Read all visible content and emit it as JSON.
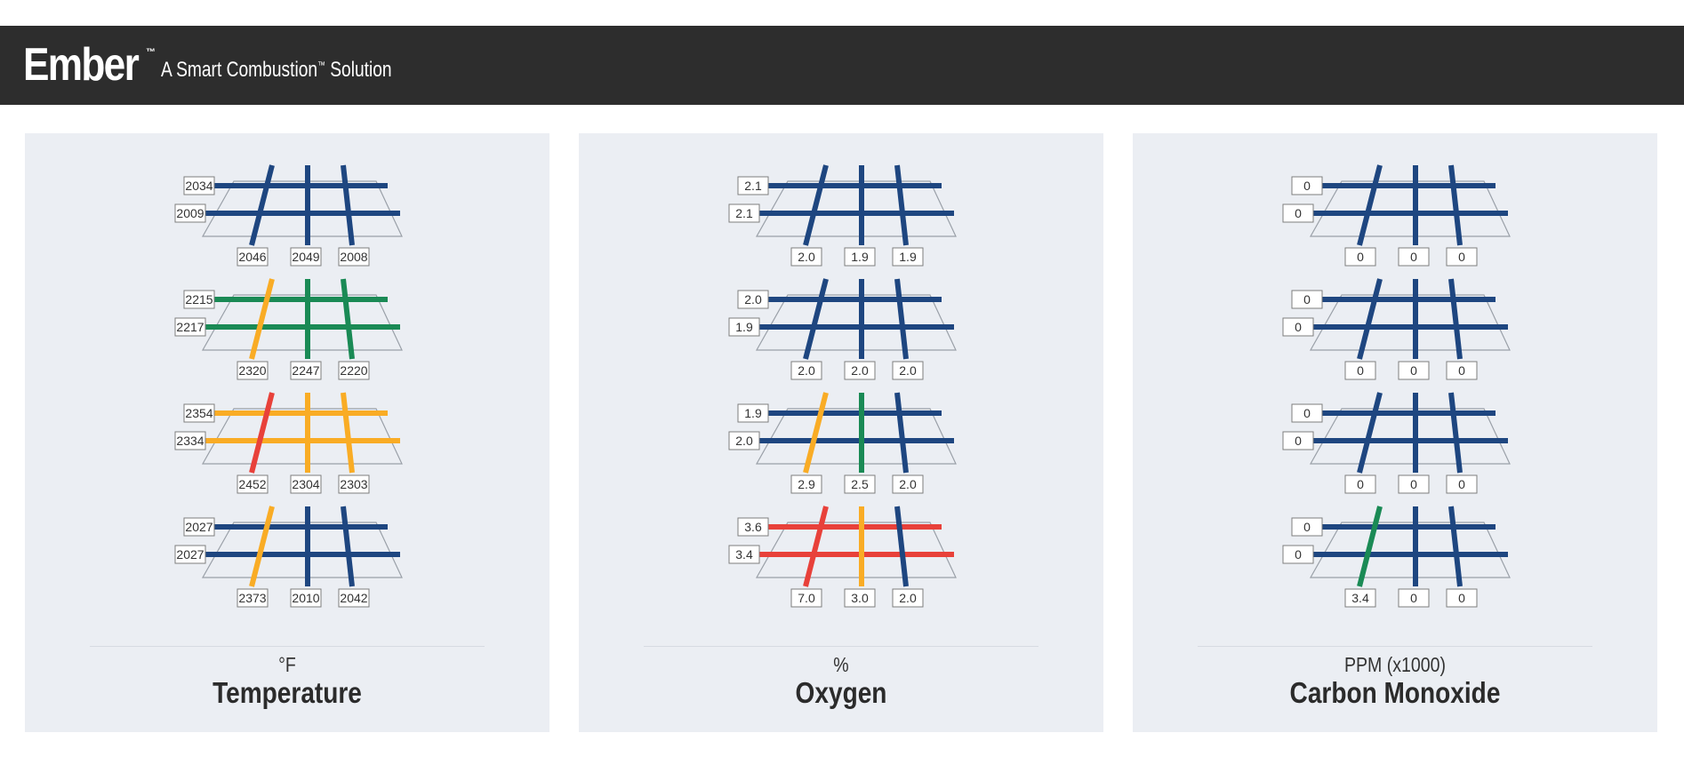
{
  "app": {
    "brand": "Ember",
    "brand_tm": "™",
    "tagline_pre": "A Smart Combustion",
    "tagline_tm": "™",
    "tagline_post": " Solution"
  },
  "colors": {
    "header_bg": "#2d2d2d",
    "panel_bg": "#ebeef3",
    "blue": "#1e4680",
    "green": "#1a8a55",
    "yellow": "#f9ac25",
    "red": "#e8413a"
  },
  "panels": [
    {
      "key": "temperature",
      "unit": "°F",
      "title": "Temperature",
      "levels": [
        {
          "rows": [
            {
              "value": "2034",
              "status": "blue"
            },
            {
              "value": "2009",
              "status": "blue"
            }
          ],
          "cols": [
            {
              "value": "2046",
              "status": "blue"
            },
            {
              "value": "2049",
              "status": "blue"
            },
            {
              "value": "2008",
              "status": "blue"
            }
          ]
        },
        {
          "rows": [
            {
              "value": "2215",
              "status": "green"
            },
            {
              "value": "2217",
              "status": "green"
            }
          ],
          "cols": [
            {
              "value": "2320",
              "status": "yellow"
            },
            {
              "value": "2247",
              "status": "green"
            },
            {
              "value": "2220",
              "status": "green"
            }
          ]
        },
        {
          "rows": [
            {
              "value": "2354",
              "status": "yellow"
            },
            {
              "value": "2334",
              "status": "yellow"
            }
          ],
          "cols": [
            {
              "value": "2452",
              "status": "red"
            },
            {
              "value": "2304",
              "status": "yellow"
            },
            {
              "value": "2303",
              "status": "yellow"
            }
          ]
        },
        {
          "rows": [
            {
              "value": "2027",
              "status": "blue"
            },
            {
              "value": "2027",
              "status": "blue"
            }
          ],
          "cols": [
            {
              "value": "2373",
              "status": "yellow"
            },
            {
              "value": "2010",
              "status": "blue"
            },
            {
              "value": "2042",
              "status": "blue"
            }
          ]
        }
      ]
    },
    {
      "key": "oxygen",
      "unit": "%",
      "title": "Oxygen",
      "levels": [
        {
          "rows": [
            {
              "value": "2.1",
              "status": "blue"
            },
            {
              "value": "2.1",
              "status": "blue"
            }
          ],
          "cols": [
            {
              "value": "2.0",
              "status": "blue"
            },
            {
              "value": "1.9",
              "status": "blue"
            },
            {
              "value": "1.9",
              "status": "blue"
            }
          ]
        },
        {
          "rows": [
            {
              "value": "2.0",
              "status": "blue"
            },
            {
              "value": "1.9",
              "status": "blue"
            }
          ],
          "cols": [
            {
              "value": "2.0",
              "status": "blue"
            },
            {
              "value": "2.0",
              "status": "blue"
            },
            {
              "value": "2.0",
              "status": "blue"
            }
          ]
        },
        {
          "rows": [
            {
              "value": "1.9",
              "status": "blue"
            },
            {
              "value": "2.0",
              "status": "blue"
            }
          ],
          "cols": [
            {
              "value": "2.9",
              "status": "yellow"
            },
            {
              "value": "2.5",
              "status": "green"
            },
            {
              "value": "2.0",
              "status": "blue"
            }
          ]
        },
        {
          "rows": [
            {
              "value": "3.6",
              "status": "red"
            },
            {
              "value": "3.4",
              "status": "red"
            }
          ],
          "cols": [
            {
              "value": "7.0",
              "status": "red"
            },
            {
              "value": "3.0",
              "status": "yellow"
            },
            {
              "value": "2.0",
              "status": "blue"
            }
          ]
        }
      ]
    },
    {
      "key": "carbon-monoxide",
      "unit": "PPM (x1000)",
      "title": "Carbon Monoxide",
      "levels": [
        {
          "rows": [
            {
              "value": "0",
              "status": "blue"
            },
            {
              "value": "0",
              "status": "blue"
            }
          ],
          "cols": [
            {
              "value": "0",
              "status": "blue"
            },
            {
              "value": "0",
              "status": "blue"
            },
            {
              "value": "0",
              "status": "blue"
            }
          ]
        },
        {
          "rows": [
            {
              "value": "0",
              "status": "blue"
            },
            {
              "value": "0",
              "status": "blue"
            }
          ],
          "cols": [
            {
              "value": "0",
              "status": "blue"
            },
            {
              "value": "0",
              "status": "blue"
            },
            {
              "value": "0",
              "status": "blue"
            }
          ]
        },
        {
          "rows": [
            {
              "value": "0",
              "status": "blue"
            },
            {
              "value": "0",
              "status": "blue"
            }
          ],
          "cols": [
            {
              "value": "0",
              "status": "blue"
            },
            {
              "value": "0",
              "status": "blue"
            },
            {
              "value": "0",
              "status": "blue"
            }
          ]
        },
        {
          "rows": [
            {
              "value": "0",
              "status": "blue"
            },
            {
              "value": "0",
              "status": "blue"
            }
          ],
          "cols": [
            {
              "value": "3.4",
              "status": "green"
            },
            {
              "value": "0",
              "status": "blue"
            },
            {
              "value": "0",
              "status": "blue"
            }
          ]
        }
      ]
    }
  ]
}
